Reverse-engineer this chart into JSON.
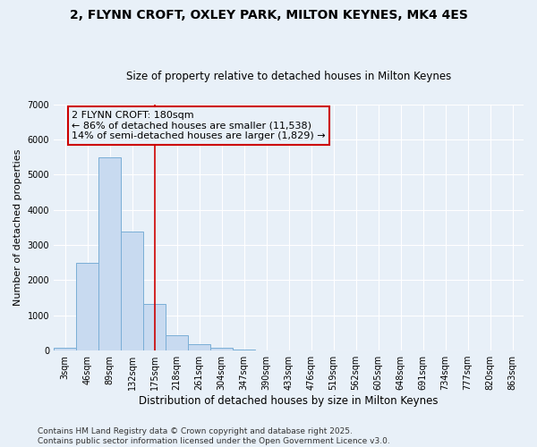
{
  "title": "2, FLYNN CROFT, OXLEY PARK, MILTON KEYNES, MK4 4ES",
  "subtitle": "Size of property relative to detached houses in Milton Keynes",
  "xlabel": "Distribution of detached houses by size in Milton Keynes",
  "ylabel": "Number of detached properties",
  "bar_color": "#c8daf0",
  "bar_edge_color": "#7aaed6",
  "background_color": "#e8f0f8",
  "grid_color": "#ffffff",
  "categories": [
    "3sqm",
    "46sqm",
    "89sqm",
    "132sqm",
    "175sqm",
    "218sqm",
    "261sqm",
    "304sqm",
    "347sqm",
    "390sqm",
    "433sqm",
    "476sqm",
    "519sqm",
    "562sqm",
    "605sqm",
    "648sqm",
    "691sqm",
    "734sqm",
    "777sqm",
    "820sqm",
    "863sqm"
  ],
  "values": [
    80,
    2500,
    5500,
    3380,
    1320,
    440,
    185,
    90,
    35,
    0,
    0,
    0,
    0,
    0,
    0,
    0,
    0,
    0,
    0,
    0,
    0
  ],
  "ylim": [
    0,
    7000
  ],
  "yticks": [
    0,
    1000,
    2000,
    3000,
    4000,
    5000,
    6000,
    7000
  ],
  "vline_x": 4.0,
  "vline_color": "#cc0000",
  "annotation_text": "2 FLYNN CROFT: 180sqm\n← 86% of detached houses are smaller (11,538)\n14% of semi-detached houses are larger (1,829) →",
  "annotation_box_color": "#cc0000",
  "footnote": "Contains HM Land Registry data © Crown copyright and database right 2025.\nContains public sector information licensed under the Open Government Licence v3.0.",
  "title_fontsize": 10,
  "subtitle_fontsize": 8.5,
  "ylabel_fontsize": 8,
  "xlabel_fontsize": 8.5,
  "tick_fontsize": 7,
  "annotation_fontsize": 8,
  "footnote_fontsize": 6.5
}
